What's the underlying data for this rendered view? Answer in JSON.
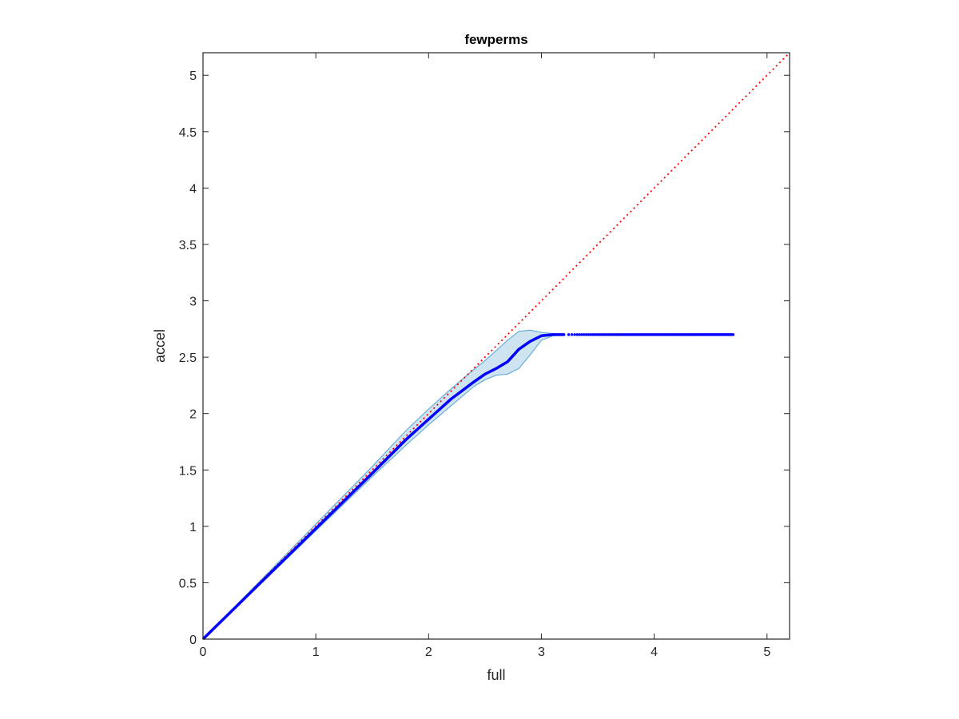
{
  "chart_data": {
    "type": "line",
    "title": "fewperms",
    "xlabel": "full",
    "ylabel": "accel",
    "xlim": [
      0,
      5.2
    ],
    "ylim": [
      0,
      5.2
    ],
    "xticks": [
      0,
      1,
      2,
      3,
      4,
      5
    ],
    "xtick_labels": [
      "0",
      "1",
      "2",
      "3",
      "4",
      "5"
    ],
    "yticks": [
      0,
      0.5,
      1,
      1.5,
      2,
      2.5,
      3,
      3.5,
      4,
      4.5,
      5
    ],
    "ytick_labels": [
      "0",
      "0.5",
      "1",
      "1.5",
      "2",
      "2.5",
      "3",
      "3.5",
      "4",
      "4.5",
      "5"
    ],
    "grid": false,
    "reference_line": {
      "style": "dotted",
      "color": "#ff0000",
      "x": [
        0,
        5.2
      ],
      "y": [
        0,
        5.2
      ]
    },
    "band": {
      "color": "#a6cee3",
      "edge_color": "#6aaed6",
      "x": [
        0,
        0.5,
        1.0,
        1.5,
        1.8,
        2.0,
        2.2,
        2.4,
        2.5,
        2.6,
        2.7,
        2.8,
        2.9,
        3.0,
        3.1,
        3.2
      ],
      "lower": [
        0,
        0.48,
        0.96,
        1.44,
        1.72,
        1.9,
        2.07,
        2.24,
        2.3,
        2.34,
        2.35,
        2.4,
        2.52,
        2.65,
        2.69,
        2.7
      ],
      "upper": [
        0,
        0.51,
        1.02,
        1.53,
        1.85,
        2.04,
        2.22,
        2.39,
        2.47,
        2.56,
        2.65,
        2.73,
        2.74,
        2.72,
        2.71,
        2.7
      ]
    },
    "series": [
      {
        "color": "#0000ff",
        "x": [
          0,
          0.5,
          1.0,
          1.5,
          1.8,
          2.0,
          2.2,
          2.4,
          2.5,
          2.6,
          2.7,
          2.8,
          2.9,
          3.0,
          3.1,
          3.2
        ],
        "y": [
          0,
          0.49,
          0.98,
          1.47,
          1.77,
          1.95,
          2.13,
          2.28,
          2.35,
          2.4,
          2.46,
          2.57,
          2.64,
          2.69,
          2.7,
          2.7
        ]
      },
      {
        "color": "#0000ff",
        "style": "dots",
        "x_start": 3.2,
        "x_end": 4.7,
        "count": 120,
        "y": 2.7
      }
    ]
  }
}
